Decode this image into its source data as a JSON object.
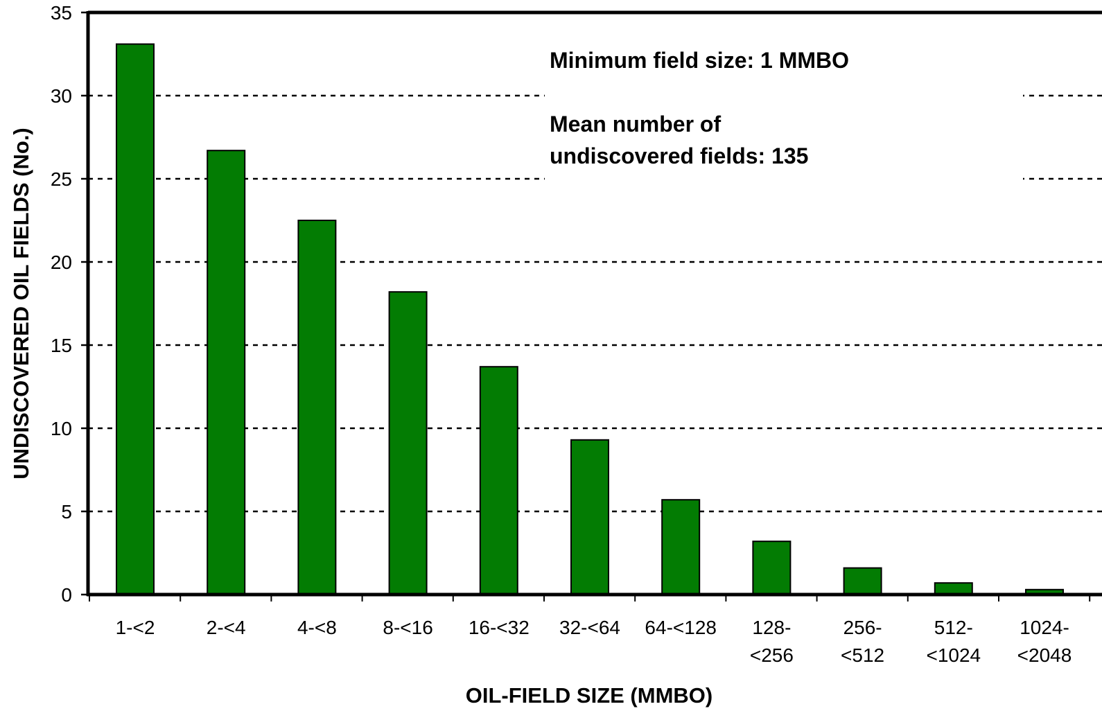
{
  "chart_data": {
    "type": "bar",
    "title": "",
    "xlabel": "OIL-FIELD SIZE (MMBO)",
    "ylabel": "UNDISCOVERED OIL FIELDS (No.)",
    "ylim": [
      0,
      35
    ],
    "yticks": [
      0,
      5,
      10,
      15,
      20,
      25,
      30,
      35
    ],
    "grid": "horizontal dotted",
    "categories": [
      [
        "1-<2"
      ],
      [
        "2-<4"
      ],
      [
        "4-<8"
      ],
      [
        "8-<16"
      ],
      [
        "16-<32"
      ],
      [
        "32-<64"
      ],
      [
        "64-<128"
      ],
      [
        "128-",
        "<256"
      ],
      [
        "256-",
        "<512"
      ],
      [
        "512-",
        "<1024"
      ],
      [
        "1024-",
        "<2048"
      ]
    ],
    "values": [
      33.1,
      26.7,
      22.5,
      18.2,
      13.7,
      9.3,
      5.7,
      3.2,
      1.6,
      0.7,
      0.3
    ],
    "bar_color": "#037c03",
    "annotations": [
      "Minimum field size: 1 MMBO",
      "Mean number of",
      "undiscovered fields: 135"
    ]
  }
}
